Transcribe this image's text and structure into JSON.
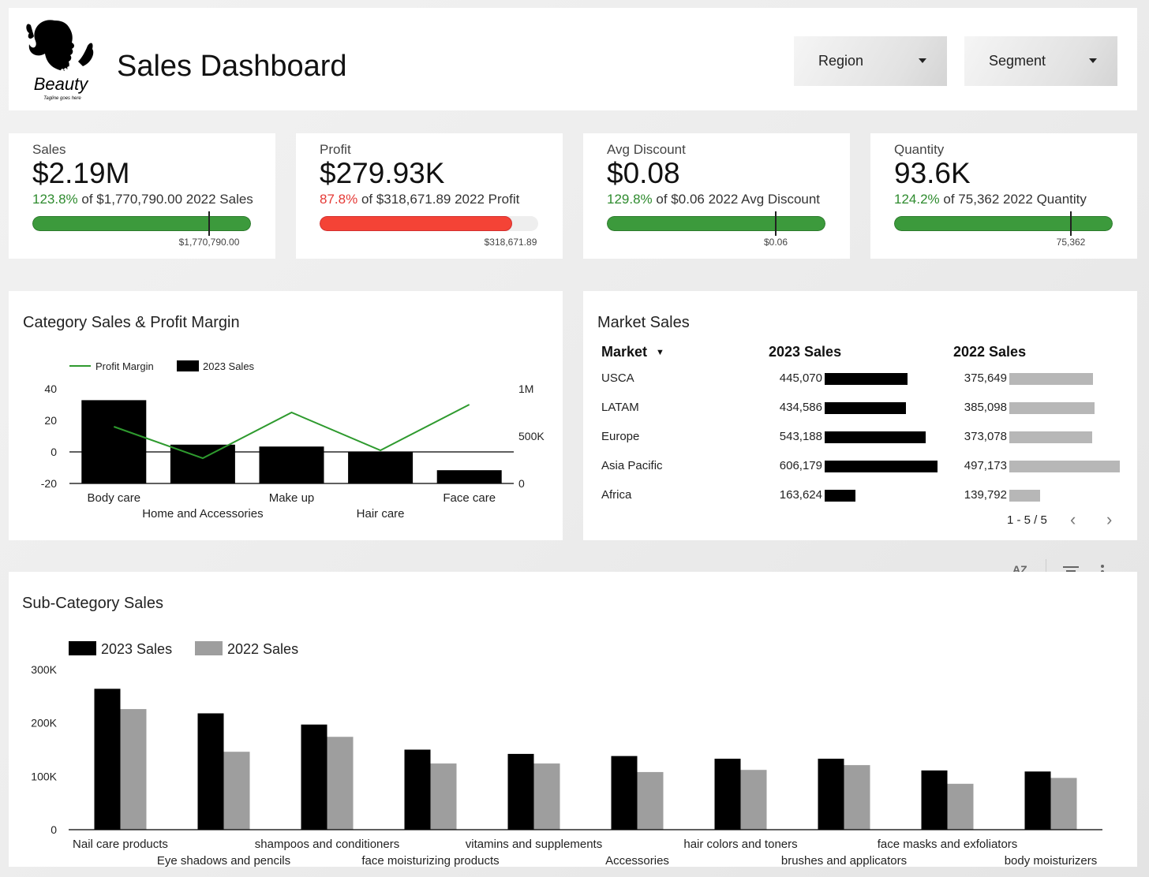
{
  "header": {
    "title": "Sales Dashboard",
    "logo_text": "Beauty",
    "logo_tagline": "Tagline goes here",
    "filters": [
      {
        "label": "Region"
      },
      {
        "label": "Segment"
      }
    ]
  },
  "kpis": [
    {
      "label": "Sales",
      "value": "$2.19M",
      "pct": "123.8%",
      "pct_positive": true,
      "compare_text": "of $1,770,790.00 2022 Sales",
      "target_label": "$1,770,790.00",
      "progress": 1.238
    },
    {
      "label": "Profit",
      "value": "$279.93K",
      "pct": "87.8%",
      "pct_positive": false,
      "compare_text": "of $318,671.89 2022 Profit",
      "target_label": "$318,671.89",
      "progress": 0.878
    },
    {
      "label": "Avg Discount",
      "value": "$0.08",
      "pct": "129.8%",
      "pct_positive": true,
      "compare_text": "of $0.06 2022 Avg Discount",
      "target_label": "$0.06",
      "progress": 1.298
    },
    {
      "label": "Quantity",
      "value": "93.6K",
      "pct": "124.2%",
      "pct_positive": true,
      "compare_text": "of 75,362 2022 Quantity",
      "target_label": "75,362",
      "progress": 1.242
    }
  ],
  "category_panel": {
    "title": "Category Sales & Profit Margin"
  },
  "market_panel": {
    "title": "Market Sales",
    "columns": [
      "Market",
      "2023 Sales",
      "2022 Sales"
    ],
    "rows": [
      {
        "market": "USCA",
        "s2023": "445,070",
        "s2022": "375,649"
      },
      {
        "market": "LATAM",
        "s2023": "434,586",
        "s2022": "385,098"
      },
      {
        "market": "Europe",
        "s2023": "543,188",
        "s2022": "373,078"
      },
      {
        "market": "Asia Pacific",
        "s2023": "606,179",
        "s2022": "497,173"
      },
      {
        "market": "Africa",
        "s2023": "163,624",
        "s2022": "139,792"
      }
    ],
    "bar_values_2023": [
      445070,
      434586,
      543188,
      606179,
      163624
    ],
    "bar_values_2022": [
      375649,
      385098,
      373078,
      497173,
      139792
    ],
    "pager": "1 - 5 / 5"
  },
  "subcategory_panel": {
    "title": "Sub-Category Sales"
  },
  "chart_data": [
    {
      "type": "bar",
      "title": "Category Sales & Profit Margin",
      "categories": [
        "Body care",
        "Home and Accessories",
        "Make up",
        "Hair care",
        "Face care"
      ],
      "series": [
        {
          "name": "2023 Sales",
          "kind": "bar",
          "axis": "right",
          "values": [
            880000,
            410000,
            390000,
            330000,
            140000
          ]
        },
        {
          "name": "Profit Margin",
          "kind": "line",
          "axis": "left",
          "values": [
            16,
            -4,
            25,
            1,
            30
          ]
        }
      ],
      "left_axis": {
        "ticks": [
          "40",
          "20",
          "0",
          "-20"
        ],
        "range": [
          -20,
          40
        ]
      },
      "right_axis": {
        "ticks": [
          "1M",
          "500K",
          "0"
        ],
        "range": [
          0,
          1000000
        ]
      },
      "legend": "top-left",
      "colors": {
        "bar": "#000000",
        "line": "#2e9a2e"
      }
    },
    {
      "type": "bar",
      "title": "Sub-Category Sales",
      "categories": [
        "Nail care products",
        "Eye shadows and pencils",
        "shampoos and conditioners",
        "face moisturizing products",
        "vitamins and supplements",
        "Accessories",
        "hair colors and toners",
        "brushes and applicators",
        "face masks and exfoliators",
        "body moisturizers"
      ],
      "series": [
        {
          "name": "2023 Sales",
          "values": [
            264000,
            218000,
            197000,
            150000,
            142000,
            138000,
            133000,
            133000,
            111000,
            109000
          ]
        },
        {
          "name": "2022 Sales",
          "values": [
            226000,
            146000,
            174000,
            124000,
            124000,
            108000,
            112000,
            121000,
            86000,
            97000
          ]
        }
      ],
      "y_ticks": [
        "300K",
        "200K",
        "100K",
        "0"
      ],
      "ylim": [
        0,
        300000
      ],
      "legend": "top-left",
      "colors": {
        "2023": "#000000",
        "2022": "#9e9e9e"
      }
    }
  ]
}
